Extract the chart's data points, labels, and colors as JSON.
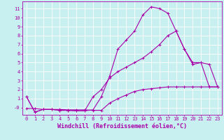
{
  "bg_color": "#c8f0f0",
  "line_color": "#aa00aa",
  "marker": "+",
  "xlim": [
    -0.5,
    23.5
  ],
  "ylim": [
    -0.8,
    11.8
  ],
  "xticks": [
    0,
    1,
    2,
    3,
    4,
    5,
    6,
    7,
    8,
    9,
    10,
    11,
    12,
    13,
    14,
    15,
    16,
    17,
    18,
    19,
    20,
    21,
    22,
    23
  ],
  "yticks": [
    0,
    1,
    2,
    3,
    4,
    5,
    6,
    7,
    8,
    9,
    10,
    11
  ],
  "ytick_labels": [
    "-0",
    "1",
    "2",
    "3",
    "4",
    "5",
    "6",
    "7",
    "8",
    "9",
    "10",
    "11"
  ],
  "line1_x": [
    0,
    1,
    2,
    3,
    4,
    5,
    6,
    7,
    8,
    9,
    10,
    11,
    12,
    13,
    14,
    15,
    16,
    17,
    18,
    19,
    20,
    21,
    22,
    23
  ],
  "line1_y": [
    1.2,
    -0.5,
    -0.2,
    -0.2,
    -0.3,
    -0.3,
    -0.35,
    -0.35,
    -0.25,
    1.2,
    3.5,
    6.5,
    7.5,
    8.5,
    10.3,
    11.2,
    11.0,
    10.5,
    8.5,
    6.5,
    4.8,
    5.0,
    2.3,
    2.3
  ],
  "line2_x": [
    0,
    1,
    2,
    3,
    4,
    5,
    6,
    7,
    8,
    9,
    10,
    11,
    12,
    13,
    14,
    15,
    16,
    17,
    18,
    19,
    20,
    21,
    22,
    23
  ],
  "line2_y": [
    1.2,
    -0.5,
    -0.2,
    -0.2,
    -0.3,
    -0.3,
    -0.35,
    -0.35,
    1.2,
    2.0,
    3.3,
    4.0,
    4.5,
    5.0,
    5.5,
    6.2,
    7.0,
    8.0,
    8.5,
    6.5,
    5.0,
    5.0,
    4.8,
    2.3
  ],
  "line3_x": [
    0,
    1,
    2,
    3,
    4,
    5,
    6,
    7,
    8,
    9,
    10,
    11,
    12,
    13,
    14,
    15,
    16,
    17,
    18,
    19,
    20,
    21,
    22,
    23
  ],
  "line3_y": [
    -0.1,
    -0.1,
    -0.2,
    -0.2,
    -0.2,
    -0.25,
    -0.25,
    -0.25,
    -0.3,
    -0.3,
    0.5,
    1.0,
    1.4,
    1.8,
    2.0,
    2.1,
    2.2,
    2.3,
    2.3,
    2.3,
    2.3,
    2.3,
    2.3,
    2.3
  ],
  "grid_color": "#ffffff",
  "tick_color": "#aa00aa",
  "tick_fontsize": 5.0,
  "xlabel": "Windchill (Refroidissement éolien,°C)",
  "xlabel_fontsize": 6.0,
  "marker_size": 2.5,
  "linewidth": 0.8
}
